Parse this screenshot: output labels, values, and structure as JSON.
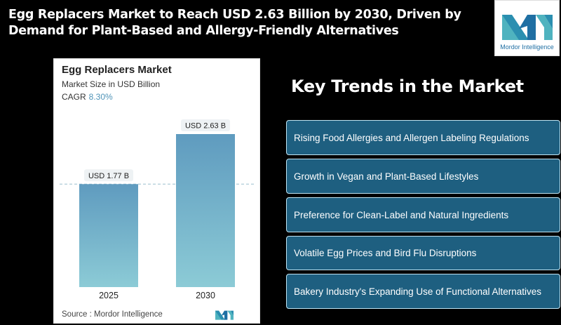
{
  "headline": "Egg Replacers Market to Reach USD 2.63 Billion by 2030, Driven by Demand for Plant-Based and Allergy-Friendly Alternatives",
  "logo": {
    "text": "Mordor Intelligence",
    "icon": "mordor-intelligence-logo-icon",
    "colors": [
      "#4fb3bf",
      "#1f6fa3"
    ]
  },
  "chart_data": {
    "type": "bar",
    "title": "Egg Replacers Market",
    "subtitle": "Market Size in USD Billion",
    "cagr_label": "CAGR",
    "cagr_value": "8.30%",
    "categories": [
      "2025",
      "2030"
    ],
    "values": [
      1.77,
      2.63
    ],
    "data_labels": [
      "USD 1.77 B",
      "USD 2.63 B"
    ],
    "ylim": [
      0,
      2.63
    ],
    "grid": false,
    "legend": "none",
    "reference_line": "dashed at 2025 value",
    "bar_color_top": "#5f9bbf",
    "bar_color_bottom": "#8ccbd6",
    "source": "Source :  Mordor Intelligence"
  },
  "trends": {
    "title": "Key Trends in the Market",
    "items": [
      "Rising Food Allergies and Allergen Labeling Regulations",
      "Growth in Vegan and Plant-Based Lifestyles",
      "Preference for Clean-Label and Natural Ingredients",
      "Volatile Egg Prices and Bird Flu Disruptions",
      "Bakery Industry's Expanding Use of Functional Alternatives"
    ],
    "box_color": "#1e5f80",
    "border_color": "#bfe3f2"
  }
}
